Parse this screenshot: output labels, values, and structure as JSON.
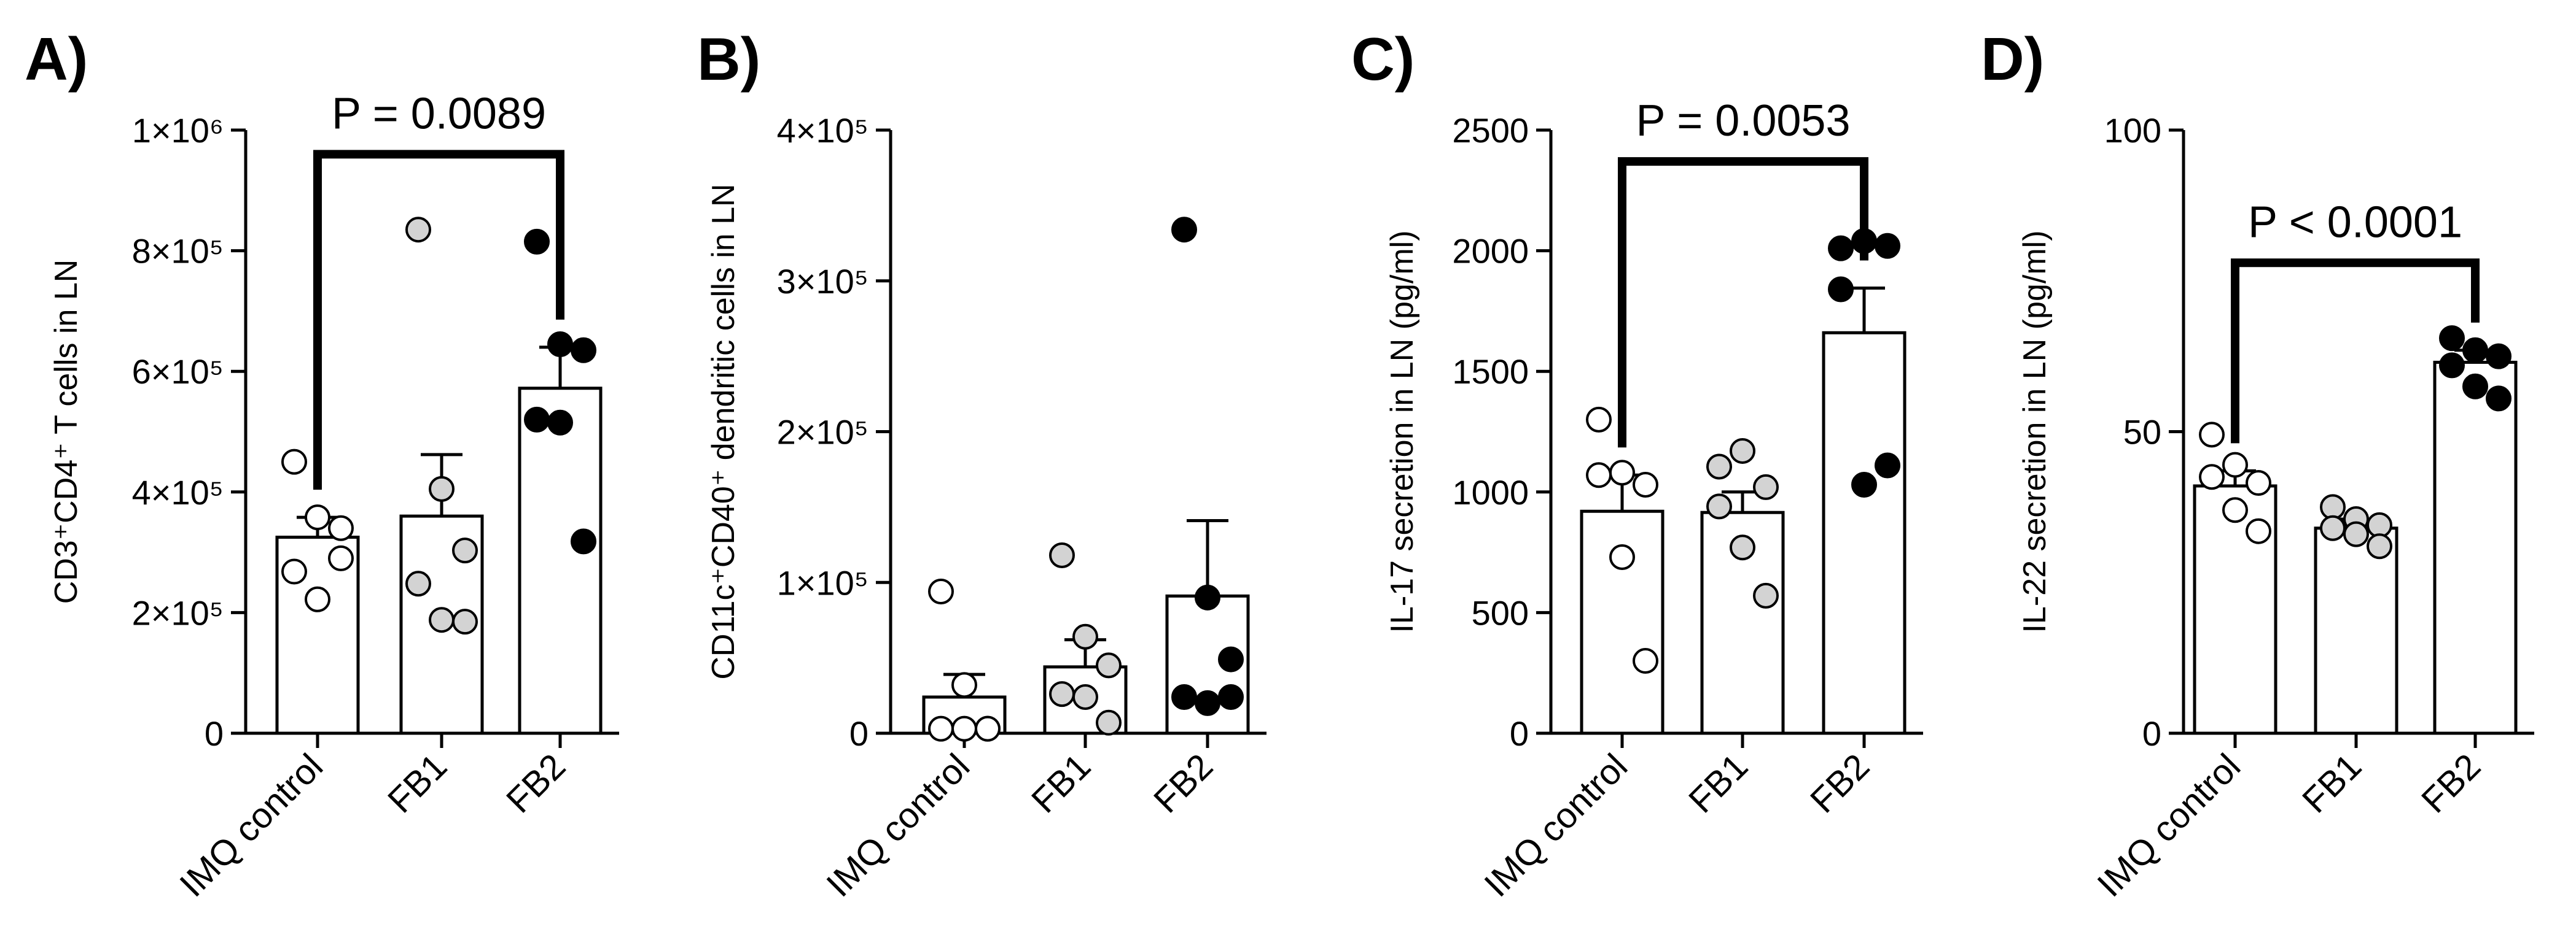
{
  "figure": {
    "panels": [
      "A)",
      "B)",
      "C)",
      "D)"
    ]
  },
  "chart_data": [
    {
      "type": "bar",
      "panel_label": "A)",
      "categories": [
        "IMQ control",
        "FB1",
        "FB2"
      ],
      "values": [
        325000,
        360000,
        572000
      ],
      "error_upper": [
        358000,
        462000,
        640000
      ],
      "points": [
        [
          450000,
          358000,
          340000,
          268000,
          222000,
          290000
        ],
        [
          835000,
          405000,
          303000,
          248000,
          188000,
          185000
        ],
        [
          815000,
          645000,
          635000,
          520000,
          515000,
          318000
        ]
      ],
      "point_colors": [
        "#ffffff",
        "#d3d3d3",
        "#000000"
      ],
      "ylabel": "CD3⁺CD4⁺ T cells in LN",
      "ylim": [
        0,
        1000000
      ],
      "yticks": [
        0,
        200000,
        400000,
        600000,
        800000,
        1000000
      ],
      "ytick_labels": [
        "0",
        "2×10⁵",
        "4×10⁵",
        "6×10⁵",
        "8×10⁵",
        "1×10⁶"
      ],
      "comparison": {
        "from": "IMQ control",
        "to": "FB2",
        "label": "P = 0.0089",
        "level": 960000
      }
    },
    {
      "type": "bar",
      "panel_label": "B)",
      "categories": [
        "IMQ control",
        "FB1",
        "FB2"
      ],
      "values": [
        24000,
        44000,
        91000
      ],
      "error_upper": [
        39000,
        62000,
        141000
      ],
      "points": [
        [
          94000,
          32000,
          3000,
          3000,
          3000,
          3000
        ],
        [
          118000,
          64000,
          45000,
          26000,
          24000,
          7000
        ],
        [
          334000,
          90000,
          49000,
          24000,
          20000,
          24000
        ]
      ],
      "point_colors": [
        "#ffffff",
        "#d3d3d3",
        "#000000"
      ],
      "ylabel": "CD11c⁺CD40⁺ dendritic cells in LN",
      "ylim": [
        0,
        400000
      ],
      "yticks": [
        0,
        100000,
        200000,
        300000,
        400000
      ],
      "ytick_labels": [
        "0",
        "1×10⁵",
        "2×10⁵",
        "3×10⁵",
        "4×10⁵"
      ]
    },
    {
      "type": "bar",
      "panel_label": "C)",
      "categories": [
        "IMQ control",
        "FB1",
        "FB2"
      ],
      "values": [
        920,
        915,
        1660
      ],
      "error_upper": [
        1070,
        1000,
        1845
      ],
      "points": [
        [
          1300,
          1080,
          1030,
          1070,
          730,
          300
        ],
        [
          1105,
          1170,
          1020,
          940,
          770,
          570
        ],
        [
          2010,
          2040,
          2020,
          1840,
          1030,
          1110
        ]
      ],
      "point_colors": [
        "#ffffff",
        "#d3d3d3",
        "#000000"
      ],
      "ylabel": "IL-17 secretion in LN (pg/ml)",
      "ylim": [
        0,
        2500
      ],
      "yticks": [
        0,
        500,
        1000,
        1500,
        2000,
        2500
      ],
      "ytick_labels": [
        "0",
        "500",
        "1000",
        "1500",
        "2000",
        "2500"
      ],
      "comparison": {
        "from": "IMQ control",
        "to": "FB2",
        "label": "P = 0.0053",
        "level": 2370
      }
    },
    {
      "type": "bar",
      "panel_label": "D)",
      "categories": [
        "IMQ control",
        "FB1",
        "FB2"
      ],
      "values": [
        41,
        34,
        61.5
      ],
      "error_upper": [
        43.5,
        35.5,
        63.5
      ],
      "points": [
        [
          49.5,
          44.5,
          41.5,
          42.5,
          37,
          33.5
        ],
        [
          37.5,
          35.5,
          34.5,
          34,
          33,
          31
        ],
        [
          65.5,
          63.5,
          62.5,
          61,
          57.5,
          55.5
        ]
      ],
      "point_colors": [
        "#ffffff",
        "#d3d3d3",
        "#000000"
      ],
      "ylabel": "IL-22 secretion in LN (pg/ml)",
      "ylim": [
        0,
        100
      ],
      "yticks": [
        0,
        50,
        100
      ],
      "ytick_labels": [
        "0",
        "50",
        "100"
      ],
      "comparison": {
        "from": "IMQ control",
        "to": "FB2",
        "label": "P < 0.0001",
        "level": 78
      }
    }
  ]
}
